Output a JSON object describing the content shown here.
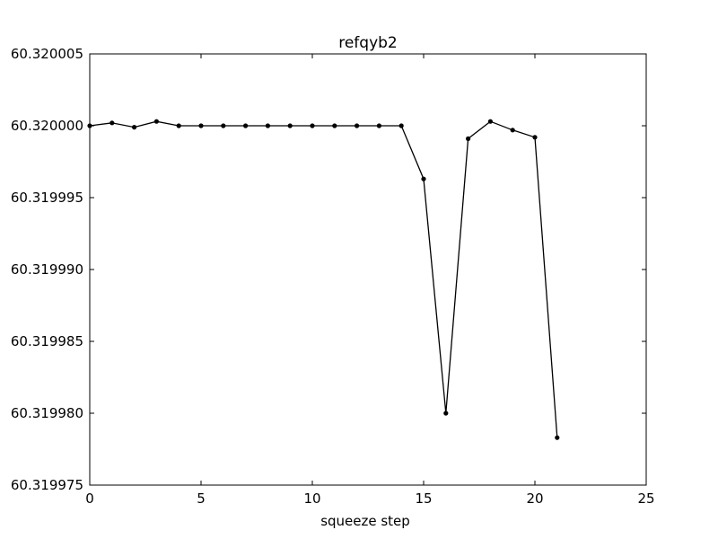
{
  "chart_data": {
    "type": "line",
    "title": "refqyb2",
    "xlabel": "squeeze step",
    "ylabel": "",
    "xlim": [
      0,
      25
    ],
    "ylim": [
      60.319975,
      60.320005
    ],
    "x_ticks": [
      0,
      5,
      10,
      15,
      20,
      25
    ],
    "y_ticks": [
      "60.319975",
      "60.319980",
      "60.319985",
      "60.319990",
      "60.319995",
      "60.320000",
      "60.320005"
    ],
    "grid": false,
    "series": [
      {
        "x": [
          0,
          1,
          2,
          3,
          4,
          5,
          6,
          7,
          8,
          9,
          10,
          11,
          12,
          13,
          14,
          15,
          16,
          17,
          18,
          19,
          20,
          21
        ],
        "values": [
          60.32,
          60.3200002,
          60.3199999,
          60.3200003,
          60.32,
          60.32,
          60.32,
          60.32,
          60.32,
          60.32,
          60.32,
          60.32,
          60.32,
          60.32,
          60.32,
          60.3199963,
          60.31998,
          60.3199991,
          60.3200003,
          60.3199997,
          60.3199992,
          60.3199783
        ]
      }
    ],
    "colors": {
      "line": "#000000",
      "marker": "#000000",
      "axes": "#000000"
    }
  }
}
